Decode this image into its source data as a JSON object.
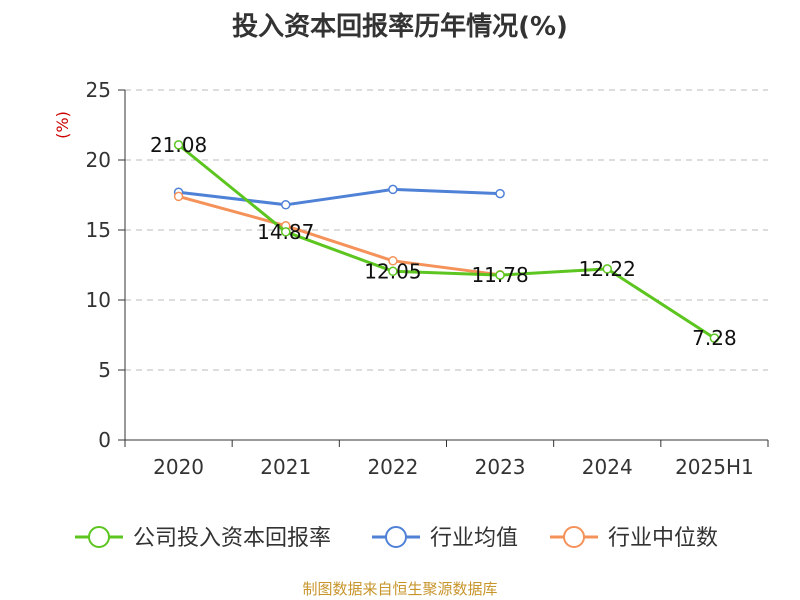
{
  "chart_data": {
    "type": "line",
    "title": "投入资本回报率历年情况(%)",
    "ylabel": "(%)",
    "xlabel": "",
    "categories": [
      "2020",
      "2021",
      "2022",
      "2023",
      "2024",
      "2025H1"
    ],
    "ylim": [
      0,
      25
    ],
    "yticks": [
      0,
      5,
      10,
      15,
      20,
      25
    ],
    "grid": true,
    "legend_position": "bottom",
    "series": [
      {
        "name": "公司投入资本回报率",
        "color": "#5cc51f",
        "values": [
          21.08,
          14.87,
          12.05,
          11.78,
          12.22,
          7.28
        ],
        "labels": [
          "21.08",
          "14.87",
          "12.05",
          "11.78",
          "12.22",
          "7.28"
        ]
      },
      {
        "name": "行业均值",
        "color": "#4f81d6",
        "values": [
          17.7,
          16.8,
          17.9,
          17.6,
          null,
          null
        ]
      },
      {
        "name": "行业中位数",
        "color": "#f4925a",
        "values": [
          17.4,
          15.3,
          12.8,
          11.8,
          null,
          null
        ]
      }
    ]
  },
  "source": "制图数据来自恒生聚源数据库"
}
